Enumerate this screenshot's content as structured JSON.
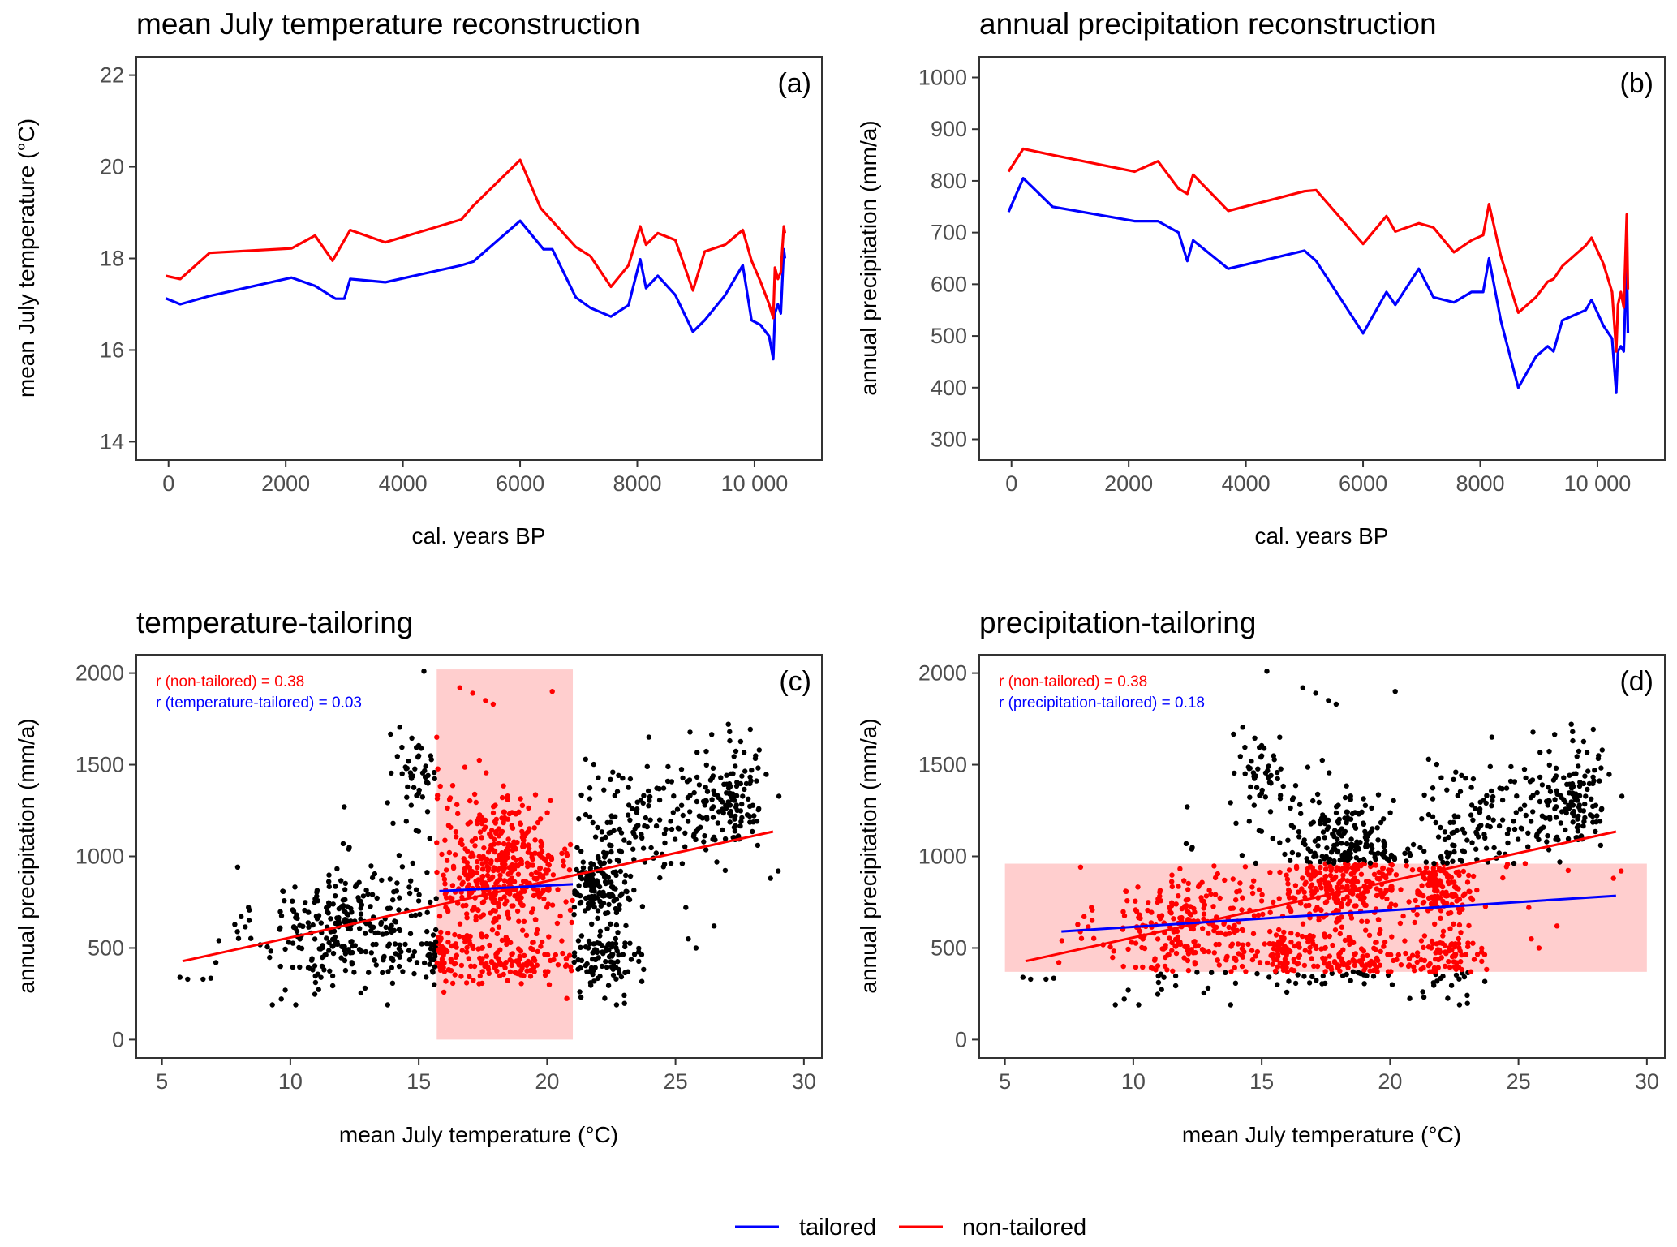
{
  "colors": {
    "tailored": "#0000ff",
    "non_tailored": "#ff0000",
    "points": "#000000",
    "highlight": "#ffb4b4"
  },
  "legend": {
    "tailored": "tailored",
    "non_tailored": "non-tailored"
  },
  "chart_data": [
    {
      "type": "line",
      "tag": "(a)",
      "title": "mean July temperature reconstruction",
      "xlabel": "cal. years BP",
      "ylabel": "mean July temperature (°C)",
      "xlim": [
        -550,
        11150
      ],
      "ylim": [
        13.6,
        22.4
      ],
      "xticks": [
        0,
        2000,
        4000,
        6000,
        8000,
        10000
      ],
      "xtick_labels": [
        "0",
        "2000",
        "4000",
        "6000",
        "8000",
        "10 000"
      ],
      "yticks": [
        14,
        16,
        18,
        20,
        22
      ],
      "ytick_labels": [
        "14",
        "16",
        "18",
        "20",
        "22"
      ],
      "series": [
        {
          "name": "tailored",
          "color": "#0000ff",
          "x": [
            -50,
            200,
            700,
            2100,
            2500,
            2850,
            3000,
            3100,
            3700,
            5000,
            5200,
            6000,
            6400,
            6550,
            6950,
            7200,
            7550,
            7850,
            8050,
            8150,
            8350,
            8650,
            8950,
            9150,
            9500,
            9800,
            9950,
            10100,
            10250,
            10320,
            10350,
            10400,
            10450,
            10500,
            10520
          ],
          "y": [
            17.13,
            17.0,
            17.18,
            17.58,
            17.4,
            17.12,
            17.12,
            17.55,
            17.48,
            17.85,
            17.93,
            18.82,
            18.2,
            18.2,
            17.15,
            16.92,
            16.73,
            16.98,
            17.98,
            17.35,
            17.62,
            17.2,
            16.4,
            16.65,
            17.2,
            17.85,
            16.65,
            16.55,
            16.3,
            15.8,
            16.8,
            17.0,
            16.8,
            18.2,
            18.0
          ]
        },
        {
          "name": "non-tailored",
          "color": "#ff0000",
          "x": [
            -50,
            200,
            700,
            2100,
            2500,
            2800,
            3100,
            3700,
            5000,
            5200,
            6000,
            6350,
            6950,
            7200,
            7550,
            7850,
            8050,
            8150,
            8350,
            8650,
            8950,
            9150,
            9500,
            9800,
            9950,
            10100,
            10250,
            10320,
            10350,
            10400,
            10450,
            10500,
            10520
          ],
          "y": [
            17.62,
            17.55,
            18.12,
            18.22,
            18.5,
            17.95,
            18.62,
            18.35,
            18.85,
            19.15,
            20.15,
            19.1,
            18.25,
            18.05,
            17.38,
            17.85,
            18.7,
            18.3,
            18.55,
            18.4,
            17.3,
            18.15,
            18.3,
            18.62,
            17.95,
            17.5,
            17.0,
            16.7,
            17.8,
            17.55,
            17.7,
            18.7,
            18.55
          ]
        }
      ]
    },
    {
      "type": "line",
      "tag": "(b)",
      "title": "annual precipitation reconstruction",
      "xlabel": "cal. years BP",
      "ylabel": "annual precipitation (mm/a)",
      "xlim": [
        -550,
        11150
      ],
      "ylim": [
        260,
        1040
      ],
      "xticks": [
        0,
        2000,
        4000,
        6000,
        8000,
        10000
      ],
      "xtick_labels": [
        "0",
        "2000",
        "4000",
        "6000",
        "8000",
        "10 000"
      ],
      "yticks": [
        300,
        400,
        500,
        600,
        700,
        800,
        900,
        1000
      ],
      "ytick_labels": [
        "300",
        "400",
        "500",
        "600",
        "700",
        "800",
        "900",
        "1000"
      ],
      "series": [
        {
          "name": "tailored",
          "color": "#0000ff",
          "x": [
            -50,
            200,
            700,
            2100,
            2500,
            2850,
            3000,
            3100,
            3700,
            5000,
            5200,
            6000,
            6400,
            6550,
            6950,
            7200,
            7550,
            7850,
            8050,
            8150,
            8350,
            8650,
            8950,
            9150,
            9250,
            9400,
            9800,
            9900,
            10100,
            10250,
            10320,
            10350,
            10400,
            10450,
            10500,
            10520
          ],
          "y": [
            740,
            805,
            750,
            722,
            722,
            700,
            645,
            685,
            630,
            665,
            645,
            505,
            585,
            560,
            630,
            575,
            565,
            585,
            585,
            650,
            530,
            400,
            460,
            480,
            470,
            530,
            550,
            570,
            520,
            495,
            390,
            470,
            480,
            470,
            660,
            505
          ]
        },
        {
          "name": "non-tailored",
          "color": "#ff0000",
          "x": [
            -50,
            200,
            700,
            2100,
            2500,
            2850,
            3000,
            3100,
            3700,
            5000,
            5200,
            6000,
            6400,
            6550,
            6950,
            7200,
            7550,
            7850,
            8050,
            8150,
            8350,
            8650,
            8950,
            9150,
            9250,
            9400,
            9800,
            9900,
            10100,
            10250,
            10320,
            10350,
            10400,
            10450,
            10500,
            10520
          ],
          "y": [
            818,
            862,
            850,
            818,
            838,
            785,
            775,
            812,
            742,
            780,
            782,
            678,
            732,
            702,
            718,
            710,
            662,
            685,
            695,
            755,
            655,
            545,
            575,
            605,
            610,
            635,
            675,
            690,
            640,
            585,
            470,
            560,
            585,
            555,
            735,
            590
          ]
        }
      ]
    },
    {
      "type": "scatter",
      "tag": "(c)",
      "title": "temperature-tailoring",
      "xlabel": "mean July temperature (°C)",
      "ylabel": "annual precipitation (mm/a)",
      "xlim": [
        4.0,
        30.7
      ],
      "ylim": [
        -100,
        2100
      ],
      "xticks": [
        5,
        10,
        15,
        20,
        25,
        30
      ],
      "xtick_labels": [
        "5",
        "10",
        "15",
        "20",
        "25",
        "30"
      ],
      "yticks": [
        0,
        500,
        1000,
        1500,
        2000
      ],
      "ytick_labels": [
        "0",
        "500",
        "1000",
        "1500",
        "2000"
      ],
      "highlight": {
        "x": [
          15.7,
          21.0
        ],
        "y": [
          0,
          2020
        ]
      },
      "lines": [
        {
          "name": "non-tailored",
          "color": "#ff0000",
          "x": [
            5.8,
            28.8
          ],
          "y": [
            428,
            1135
          ]
        },
        {
          "name": "tailored",
          "color": "#0000ff",
          "x": [
            15.8,
            21.0
          ],
          "y": [
            810,
            848
          ]
        }
      ],
      "annotations": [
        {
          "text": "r (non-tailored) = 0.38",
          "color": "#ff0000"
        },
        {
          "text": "r (temperature-tailored) = 0.03",
          "color": "#0000ff"
        }
      ],
      "selected_x": [
        15.7,
        21.0
      ]
    },
    {
      "type": "scatter",
      "tag": "(d)",
      "title": "precipitation-tailoring",
      "xlabel": "mean July temperature (°C)",
      "ylabel": "annual precipitation (mm/a)",
      "xlim": [
        4.0,
        30.7
      ],
      "ylim": [
        -100,
        2100
      ],
      "xticks": [
        5,
        10,
        15,
        20,
        25,
        30
      ],
      "xtick_labels": [
        "5",
        "10",
        "15",
        "20",
        "25",
        "30"
      ],
      "yticks": [
        0,
        500,
        1000,
        1500,
        2000
      ],
      "ytick_labels": [
        "0",
        "500",
        "1000",
        "1500",
        "2000"
      ],
      "highlight": {
        "x": [
          5.0,
          30.0
        ],
        "y": [
          370,
          960
        ]
      },
      "lines": [
        {
          "name": "non-tailored",
          "color": "#ff0000",
          "x": [
            5.8,
            28.8
          ],
          "y": [
            428,
            1135
          ]
        },
        {
          "name": "tailored",
          "color": "#0000ff",
          "x": [
            7.2,
            28.8
          ],
          "y": [
            590,
            785
          ]
        }
      ],
      "annotations": [
        {
          "text": "r (non-tailored) = 0.38",
          "color": "#ff0000"
        },
        {
          "text": "r (precipitation-tailored) = 0.18",
          "color": "#0000ff"
        }
      ],
      "selected_y": [
        370,
        960
      ]
    }
  ],
  "scatter_points": {
    "clusters": [
      {
        "cx": 12.3,
        "cy": 610,
        "sx": 1.8,
        "sy": 170,
        "n": 300
      },
      {
        "cx": 18.3,
        "cy": 1010,
        "sx": 1.4,
        "sy": 170,
        "n": 330
      },
      {
        "cx": 18.3,
        "cy": 445,
        "sx": 1.5,
        "sy": 75,
        "n": 170
      },
      {
        "cx": 18.0,
        "cy": 810,
        "sx": 1.3,
        "sy": 90,
        "n": 110
      },
      {
        "cx": 21.9,
        "cy": 820,
        "sx": 0.45,
        "sy": 85,
        "n": 120
      },
      {
        "cx": 22.3,
        "cy": 430,
        "sx": 0.7,
        "sy": 90,
        "n": 100
      },
      {
        "cx": 14.9,
        "cy": 1480,
        "sx": 0.45,
        "sy": 110,
        "n": 45
      },
      {
        "cx": 27.2,
        "cy": 1330,
        "sx": 0.7,
        "sy": 150,
        "n": 120
      },
      {
        "cx": 24.5,
        "cy": 1180,
        "sx": 1.6,
        "sy": 150,
        "n": 110
      },
      {
        "cx": 22.6,
        "cy": 1050,
        "sx": 0.9,
        "sy": 230,
        "n": 60
      },
      {
        "cx": 15.8,
        "cy": 500,
        "sx": 0.25,
        "sy": 50,
        "n": 40
      }
    ],
    "extra": [
      {
        "x": 5.7,
        "y": 340
      },
      {
        "x": 6.0,
        "y": 330
      },
      {
        "x": 6.6,
        "y": 330
      },
      {
        "x": 6.9,
        "y": 335
      },
      {
        "x": 7.1,
        "y": 420
      },
      {
        "x": 9.3,
        "y": 190
      },
      {
        "x": 9.8,
        "y": 270
      },
      {
        "x": 15.2,
        "y": 2010
      },
      {
        "x": 16.6,
        "y": 1920
      },
      {
        "x": 17.1,
        "y": 1890
      },
      {
        "x": 17.6,
        "y": 1850
      },
      {
        "x": 17.9,
        "y": 1830
      },
      {
        "x": 20.2,
        "y": 1900
      },
      {
        "x": 26.5,
        "y": 620
      },
      {
        "x": 25.5,
        "y": 550
      },
      {
        "x": 25.8,
        "y": 500
      },
      {
        "x": 28.7,
        "y": 880
      },
      {
        "x": 29.0,
        "y": 920
      },
      {
        "x": 16.2,
        "y": 1310
      },
      {
        "x": 21.5,
        "y": 1530
      },
      {
        "x": 23.9,
        "y": 1490
      },
      {
        "x": 12.1,
        "y": 1270
      },
      {
        "x": 14.0,
        "y": 1180
      },
      {
        "x": 15.7,
        "y": 1650
      }
    ]
  }
}
